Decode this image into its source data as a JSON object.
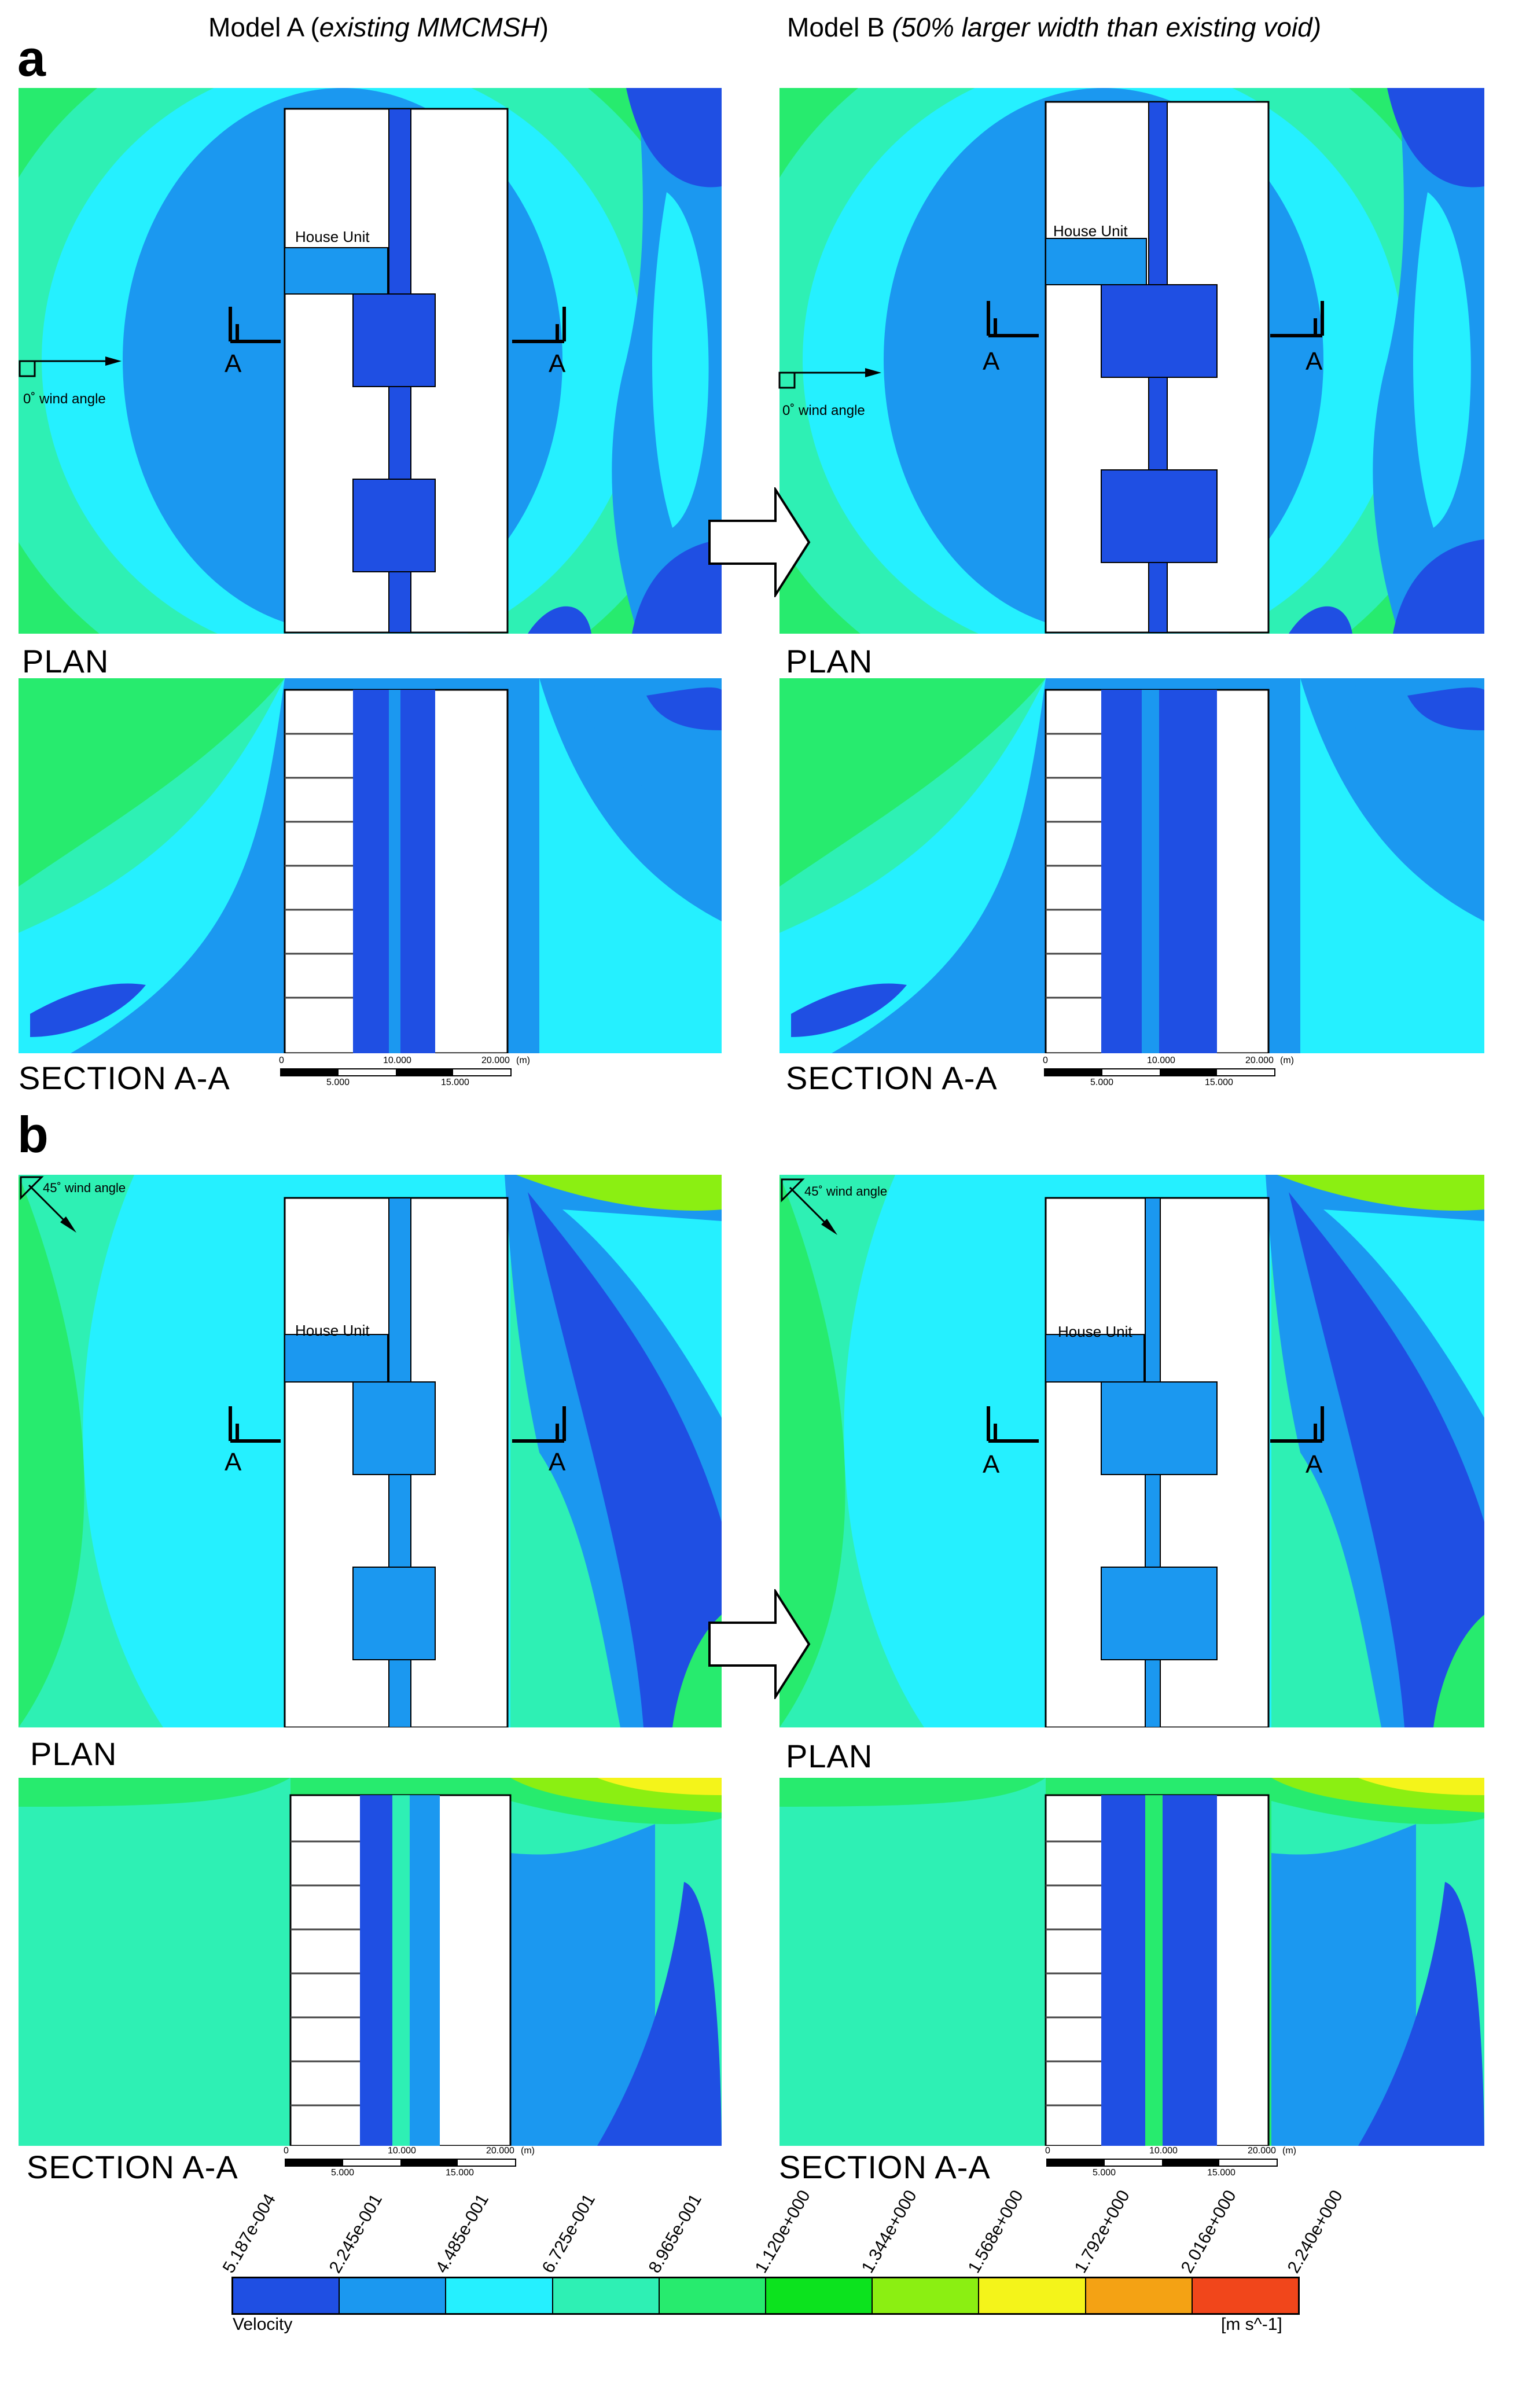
{
  "header": {
    "model_a_prefix": "Model A (",
    "model_a_italic": "existing MMCMSH",
    "model_a_suffix": ")",
    "model_b_prefix": "Model B ",
    "model_b_italic": "(50% larger width than existing void)"
  },
  "sections": [
    {
      "letter": "a",
      "wind_label": "0˚ wind angle"
    },
    {
      "letter": "b",
      "wind_label": "45˚ wind angle"
    }
  ],
  "labels": {
    "plan": "PLAN",
    "section": "SECTION A-A",
    "house_unit": "House Unit",
    "cut_marker": "A"
  },
  "scale_bar": {
    "top_ticks": [
      "0",
      "10.000",
      "20.000"
    ],
    "unit": "(m)",
    "bottom_ticks": [
      "5.000",
      "15.000"
    ]
  },
  "legend": {
    "title": "Velocity",
    "unit": "[m s^-1]",
    "ticks": [
      "5.187e-004",
      "2.245e-001",
      "4.485e-001",
      "6.725e-001",
      "8.965e-001",
      "1.120e+000",
      "1.344e+000",
      "1.568e+000",
      "1.792e+000",
      "2.016e+000",
      "2.240e+000"
    ],
    "colors": [
      "#1f4fe3",
      "#1b98f0",
      "#25f0ff",
      "#2ef0b4",
      "#27eb6e",
      "#0ce31e",
      "#8bef12",
      "#f4f41a",
      "#f4a214",
      "#f1461b"
    ]
  }
}
